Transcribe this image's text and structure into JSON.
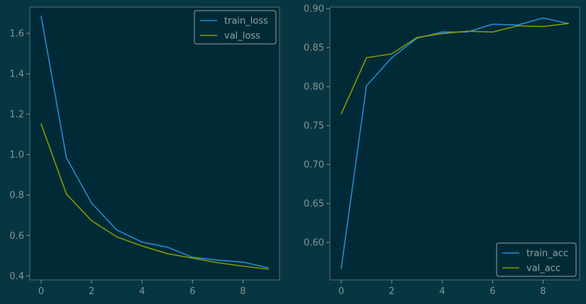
{
  "colors": {
    "background": "#073642",
    "plot_background": "#002b36",
    "train": "#268bd2",
    "val": "#859900",
    "text": "#839496"
  },
  "chart_data": [
    {
      "type": "line",
      "title": "",
      "xlabel": "",
      "ylabel": "",
      "xlim": [
        -0.45,
        9.45
      ],
      "ylim": [
        0.38,
        1.73
      ],
      "x_ticks": [
        0,
        2,
        4,
        6,
        8
      ],
      "y_ticks": [
        0.4,
        0.6,
        0.8,
        1.0,
        1.2,
        1.4,
        1.6
      ],
      "y_tick_labels": [
        "0.4",
        "0.6",
        "0.8",
        "1.0",
        "1.2",
        "1.4",
        "1.6"
      ],
      "legend_position": "top-right",
      "x": [
        0,
        1,
        2,
        3,
        4,
        5,
        6,
        7,
        8,
        9
      ],
      "series": [
        {
          "name": "train_loss",
          "color": "#268bd2",
          "values": [
            1.685,
            0.985,
            0.76,
            0.627,
            0.567,
            0.542,
            0.492,
            0.478,
            0.468,
            0.44
          ]
        },
        {
          "name": "val_loss",
          "color": "#859900",
          "values": [
            1.152,
            0.805,
            0.673,
            0.593,
            0.548,
            0.51,
            0.488,
            0.465,
            0.448,
            0.433
          ]
        }
      ]
    },
    {
      "type": "line",
      "title": "",
      "xlabel": "",
      "ylabel": "",
      "xlim": [
        -0.45,
        9.45
      ],
      "ylim": [
        0.552,
        0.902
      ],
      "x_ticks": [
        0,
        2,
        4,
        6,
        8
      ],
      "y_ticks": [
        0.6,
        0.65,
        0.7,
        0.75,
        0.8,
        0.85,
        0.9
      ],
      "y_tick_labels": [
        "0.60",
        "0.65",
        "0.70",
        "0.75",
        "0.80",
        "0.85",
        "0.90"
      ],
      "legend_position": "bottom-right",
      "x": [
        0,
        1,
        2,
        3,
        4,
        5,
        6,
        7,
        8,
        9
      ],
      "series": [
        {
          "name": "train_acc",
          "color": "#268bd2",
          "values": [
            0.567,
            0.801,
            0.837,
            0.862,
            0.87,
            0.87,
            0.88,
            0.879,
            0.888,
            0.881
          ]
        },
        {
          "name": "val_acc",
          "color": "#859900",
          "values": [
            0.765,
            0.837,
            0.842,
            0.863,
            0.868,
            0.871,
            0.87,
            0.878,
            0.877,
            0.881
          ]
        }
      ]
    }
  ]
}
